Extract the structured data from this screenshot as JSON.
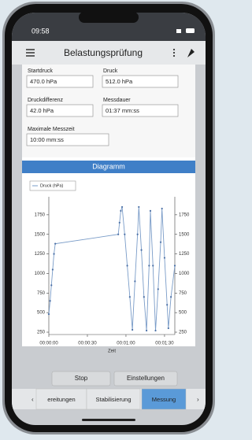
{
  "status_bar": {
    "time": "09:58"
  },
  "app_bar": {
    "title": "Belastungsprüfung"
  },
  "fields": [
    {
      "label": "Startdruck",
      "value": "470.0 hPa"
    },
    {
      "label": "Druck",
      "value": "512.0 hPa"
    },
    {
      "label": "Druckdifferenz",
      "value": "42.0 hPa"
    },
    {
      "label": "Messdauer",
      "value": "01:37 mm:ss"
    },
    {
      "label": "Maximale Messzeit",
      "value": "10:00 mm:ss"
    }
  ],
  "section_title": "Diagramm",
  "chart_data": {
    "type": "line",
    "xlabel": "Zeit",
    "x": [
      0,
      1,
      2,
      3,
      4,
      5,
      54,
      55,
      56,
      57,
      59,
      61,
      63,
      65,
      67,
      69,
      70,
      72,
      74,
      76,
      78,
      79,
      81,
      83,
      85,
      87,
      88,
      90,
      92,
      93,
      95,
      98
    ],
    "series": [
      {
        "name": "Druck (hPa)",
        "color": "#7a9cc8",
        "values": [
          480,
          650,
          850,
          1050,
          1250,
          1380,
          1500,
          1650,
          1800,
          1850,
          1500,
          1100,
          700,
          280,
          900,
          1500,
          1850,
          1300,
          700,
          270,
          1100,
          1800,
          1100,
          270,
          800,
          1400,
          1830,
          1200,
          600,
          300,
          700,
          1100
        ]
      }
    ],
    "xlim": [
      0,
      98
    ],
    "xticks": [
      {
        "value": 0,
        "label": "00:00:00"
      },
      {
        "value": 30,
        "label": "00:00:30"
      },
      {
        "value": 60,
        "label": "00:01:00"
      },
      {
        "value": 90,
        "label": "00:01:30"
      }
    ],
    "ylim": [
      220,
      1980
    ],
    "yticks": [
      250,
      500,
      750,
      1000,
      1250,
      1500,
      1750
    ],
    "y2lim": [
      220,
      1980
    ],
    "y2ticks": [
      250,
      500,
      750,
      1000,
      1250,
      1500,
      1750
    ],
    "legend": "top-left"
  },
  "buttons": [
    "Stop",
    "Einstellungen"
  ],
  "tabs": [
    "ereitungen",
    "Stabilisierung",
    "Messung"
  ],
  "active_tab": 2
}
